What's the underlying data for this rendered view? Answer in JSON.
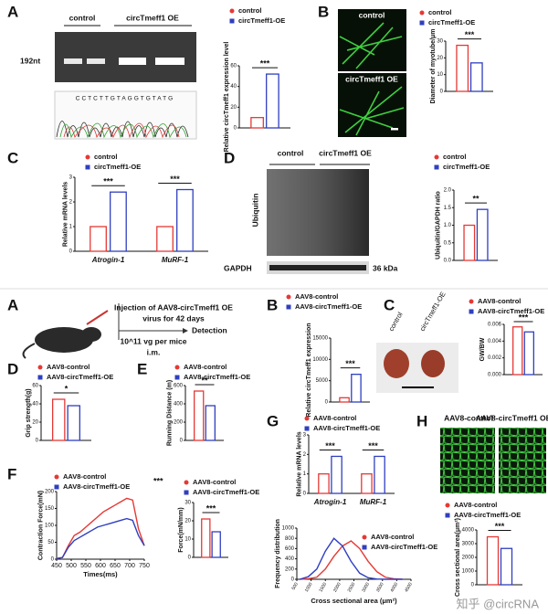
{
  "top": {
    "a": {
      "letter": "A",
      "gel_lanes": [
        "control",
        "circTmeff1 OE"
      ],
      "band": "192nt",
      "sequence": "CCTCTTGTAGGTGTATG"
    },
    "b": {
      "letter": "B",
      "images": [
        "control",
        "circTmeff1 OE"
      ]
    },
    "c": {
      "letter": "C"
    },
    "d": {
      "letter": "D",
      "lanes": [
        "control",
        "circTmeff1 OE"
      ],
      "blots": [
        "Ubiquitin",
        "GAPDH"
      ],
      "size": "36 kDa"
    }
  },
  "bottom": {
    "a": {
      "letter": "A",
      "injection": "Injection of AAV8-circTmeff1 OE",
      "duration": "virus for 42 days",
      "detection": "Detection",
      "dose": "10^11 vg per mice",
      "route": "i.m."
    },
    "b": {
      "letter": "B"
    },
    "c": {
      "letter": "C",
      "photos": [
        "control",
        "circTmeff1-OE"
      ]
    },
    "d": {
      "letter": "D"
    },
    "e": {
      "letter": "E"
    },
    "f": {
      "letter": "F"
    },
    "g": {
      "letter": "G"
    },
    "h": {
      "letter": "H",
      "images": [
        "AAV8-control",
        "AAV8-circTmeff1 OE"
      ]
    }
  },
  "watermark": "知乎 @circRNA",
  "chart_data": [
    {
      "type": "bar",
      "ylabel": "Relative circTmeff1 expression level",
      "categories": [
        null
      ],
      "series": [
        {
          "name": "control",
          "color": "#e53935",
          "values": [
            10
          ]
        },
        {
          "name": "circTmeff1-OE",
          "color": "#2f3fbf",
          "values": [
            52
          ]
        }
      ],
      "ylim": [
        0,
        60
      ],
      "yticks": [
        0,
        20,
        40,
        60
      ],
      "significance": [
        "***"
      ]
    },
    {
      "type": "bar",
      "ylabel": "Diameter of myotube/μm",
      "categories": [
        null
      ],
      "series": [
        {
          "name": "control",
          "color": "#e53935",
          "values": [
            27.5
          ]
        },
        {
          "name": "circTmeff1-OE",
          "color": "#2f3fbf",
          "values": [
            17
          ]
        }
      ],
      "ylim": [
        0,
        30
      ],
      "yticks": [
        0,
        10,
        20,
        30
      ],
      "significance": [
        "***"
      ]
    },
    {
      "type": "bar",
      "ylabel": "Relative mRNA levels",
      "categories": [
        "Atrogin-1",
        "MuRF-1"
      ],
      "series": [
        {
          "name": "control",
          "color": "#e53935",
          "values": [
            1.0,
            1.0
          ]
        },
        {
          "name": "circTmeff1-OE",
          "color": "#2f3fbf",
          "values": [
            2.4,
            2.5
          ]
        }
      ],
      "ylim": [
        0,
        3
      ],
      "yticks": [
        0,
        1,
        2,
        3
      ],
      "significance": [
        "***",
        "***"
      ]
    },
    {
      "type": "bar",
      "ylabel": "Ubiquitin/GAPDH ratio",
      "categories": [
        null
      ],
      "series": [
        {
          "name": "control",
          "color": "#e53935",
          "values": [
            1.0
          ]
        },
        {
          "name": "circTmeff1-OE",
          "color": "#2f3fbf",
          "values": [
            1.45
          ]
        }
      ],
      "ylim": [
        0,
        2
      ],
      "yticks": [
        {
          "value": 0,
          "label": "0.0"
        },
        0.5,
        {
          "value": 1,
          "label": "1.0"
        },
        1.5,
        {
          "value": 2,
          "label": "2.0"
        }
      ],
      "significance": [
        "**"
      ]
    },
    {
      "type": "bar",
      "ylabel": "Relative circTmeff1 expression",
      "categories": [
        null
      ],
      "series": [
        {
          "name": "AAV8-control",
          "color": "#e53935",
          "values": [
            1000
          ]
        },
        {
          "name": "AAV8-circTmeff1-OE",
          "color": "#2f3fbf",
          "values": [
            6500
          ]
        }
      ],
      "ylim": [
        0,
        15000
      ],
      "yticks": [
        0,
        5000,
        10000,
        15000
      ],
      "significance": [
        "***"
      ]
    },
    {
      "type": "bar",
      "ylabel": "GW/BW",
      "categories": [
        null
      ],
      "series": [
        {
          "name": "AAV8-control",
          "color": "#e53935",
          "values": [
            0.0057
          ]
        },
        {
          "name": "AAV8-circTmeff1-OE",
          "color": "#2f3fbf",
          "values": [
            0.0051
          ]
        }
      ],
      "ylim": [
        0,
        0.006
      ],
      "yticks": [
        {
          "value": 0,
          "label": "0.000"
        },
        0.002,
        0.004,
        0.006
      ],
      "significance": [
        "***"
      ]
    },
    {
      "type": "bar",
      "ylabel": "Grip strength(g)",
      "categories": [
        null
      ],
      "series": [
        {
          "name": "AAV8-control",
          "color": "#e53935",
          "values": [
            45
          ]
        },
        {
          "name": "AAV8-circTmeff1-OE",
          "color": "#2f3fbf",
          "values": [
            38
          ]
        }
      ],
      "ylim": [
        0,
        60
      ],
      "yticks": [
        0,
        20,
        40,
        60
      ],
      "significance": [
        "*"
      ]
    },
    {
      "type": "bar",
      "ylabel": "Running Distance (m)",
      "categories": [
        null
      ],
      "series": [
        {
          "name": "AAV8-control",
          "color": "#e53935",
          "values": [
            540
          ]
        },
        {
          "name": "AAV8-circTmeff1-OE",
          "color": "#2f3fbf",
          "values": [
            380
          ]
        }
      ],
      "ylim": [
        0,
        600
      ],
      "yticks": [
        0,
        200,
        400,
        600
      ],
      "significance": [
        "**"
      ]
    },
    {
      "type": "line",
      "ylabel": "Contraction Force(mN)",
      "xlabel": "Times(ms)",
      "x": [
        450,
        470,
        490,
        510,
        530,
        550,
        570,
        590,
        610,
        630,
        650,
        670,
        690,
        710,
        730,
        750
      ],
      "series": [
        {
          "name": "AAV8-control",
          "color": "#e53935",
          "values": [
            2,
            5,
            40,
            70,
            80,
            95,
            110,
            125,
            140,
            150,
            160,
            170,
            180,
            175,
            90,
            40
          ]
        },
        {
          "name": "AAV8-circTmeff1-OE",
          "color": "#2f3fbf",
          "values": [
            2,
            5,
            35,
            55,
            65,
            75,
            85,
            95,
            100,
            105,
            110,
            115,
            120,
            115,
            70,
            40
          ]
        }
      ],
      "xlim": [
        450,
        750
      ],
      "xticks": [
        450,
        500,
        550,
        600,
        650,
        700,
        750
      ],
      "ylim": [
        0,
        200
      ],
      "yticks": [
        0,
        50,
        100,
        150,
        200
      ],
      "significance": "***"
    },
    {
      "type": "bar",
      "ylabel": "Force(mN/mm)",
      "categories": [
        null
      ],
      "series": [
        {
          "name": "AAV8-control",
          "color": "#e53935",
          "values": [
            21
          ]
        },
        {
          "name": "AAV8-circTmeff1-OE",
          "color": "#2f3fbf",
          "values": [
            14
          ]
        }
      ],
      "ylim": [
        0,
        30
      ],
      "yticks": [
        0,
        10,
        20,
        30
      ],
      "significance": [
        "***"
      ]
    },
    {
      "type": "bar",
      "ylabel": "Relative mRNA levels",
      "categories": [
        "Atrogin-1",
        "MuRF-1"
      ],
      "series": [
        {
          "name": "AAV8-control",
          "color": "#e53935",
          "values": [
            1.0,
            1.0
          ]
        },
        {
          "name": "AAV8-circTmeff1-OE",
          "color": "#2f3fbf",
          "values": [
            1.9,
            1.9
          ]
        }
      ],
      "ylim": [
        0,
        3
      ],
      "yticks": [
        0,
        1,
        2,
        3
      ],
      "significance": [
        "***",
        "***"
      ]
    },
    {
      "type": "line",
      "ylabel": "Frequency distribution",
      "xlabel": "Cross sectional area (μm²)",
      "x": [
        600,
        900,
        1200,
        1500,
        1800,
        2100,
        2400,
        2700,
        3000,
        3300,
        3600,
        3900,
        4200
      ],
      "series": [
        {
          "name": "AAV8-control",
          "color": "#e53935",
          "values": [
            0,
            10,
            40,
            200,
            450,
            650,
            750,
            600,
            350,
            150,
            40,
            10,
            0
          ]
        },
        {
          "name": "AAV8-circTmeff1-OE",
          "color": "#2f3fbf",
          "values": [
            0,
            50,
            200,
            550,
            800,
            650,
            350,
            120,
            30,
            5,
            0,
            0,
            0
          ]
        }
      ],
      "xlim": [
        500,
        4500
      ],
      "xticks": [
        500,
        1000,
        1500,
        2000,
        2500,
        3000,
        3500,
        4000,
        4500
      ],
      "ylim": [
        0,
        1000
      ],
      "yticks": [
        0,
        200,
        400,
        600,
        800,
        1000
      ]
    },
    {
      "type": "bar",
      "ylabel": "Cross sectional area(μm²)",
      "categories": [
        null
      ],
      "series": [
        {
          "name": "AAV8-control",
          "color": "#e53935",
          "values": [
            3500
          ]
        },
        {
          "name": "AAV8-circTmeff1-OE",
          "color": "#2f3fbf",
          "values": [
            2650
          ]
        }
      ],
      "ylim": [
        0,
        4000
      ],
      "yticks": [
        0,
        1000,
        2000,
        3000,
        4000
      ],
      "significance": [
        "***"
      ]
    }
  ]
}
